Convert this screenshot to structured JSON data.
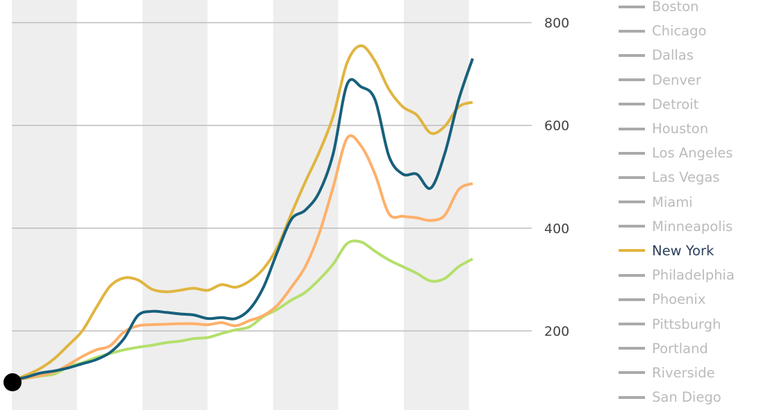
{
  "chart_data": {
    "type": "line",
    "title": "",
    "xlabel": "",
    "ylabel": "",
    "ylim": [
      46,
      844
    ],
    "yticks": [
      200,
      400,
      600,
      800
    ],
    "grid": true,
    "legend_placement": "right",
    "start_marker_value": 100,
    "series": [
      {
        "color": "#e0b540",
        "name": "New York",
        "values": [
          104,
          114,
          127,
          146,
          172,
          200,
          245,
          287,
          303,
          299,
          281,
          276,
          279,
          283,
          279,
          290,
          285,
          297,
          321,
          363,
          428,
          490,
          548,
          618,
          722,
          755,
          725,
          670,
          636,
          620,
          585,
          598,
          636,
          645
        ]
      },
      {
        "color": "#17607c",
        "values": [
          104,
          110,
          118,
          122,
          128,
          136,
          144,
          158,
          185,
          230,
          238,
          236,
          233,
          231,
          224,
          226,
          224,
          242,
          285,
          354,
          417,
          435,
          470,
          545,
          680,
          675,
          650,
          540,
          505,
          505,
          478,
          545,
          650,
          730
        ]
      },
      {
        "color": "#fdb06a",
        "values": [
          104,
          108,
          113,
          120,
          134,
          150,
          163,
          171,
          198,
          210,
          212,
          213,
          214,
          214,
          212,
          216,
          210,
          220,
          230,
          250,
          285,
          325,
          390,
          480,
          575,
          560,
          505,
          428,
          423,
          420,
          415,
          425,
          475,
          487
        ]
      },
      {
        "color": "#b4df6c",
        "values": [
          104,
          108,
          112,
          116,
          130,
          138,
          148,
          156,
          163,
          168,
          172,
          177,
          180,
          185,
          187,
          195,
          202,
          208,
          228,
          242,
          260,
          275,
          300,
          330,
          370,
          373,
          355,
          338,
          325,
          312,
          297,
          302,
          325,
          340
        ]
      }
    ]
  },
  "legend": {
    "items": [
      {
        "label": "Boston",
        "active": false
      },
      {
        "label": "Chicago",
        "active": false
      },
      {
        "label": "Dallas",
        "active": false
      },
      {
        "label": "Denver",
        "active": false
      },
      {
        "label": "Detroit",
        "active": false
      },
      {
        "label": "Houston",
        "active": false
      },
      {
        "label": "Los Angeles",
        "active": false
      },
      {
        "label": "Las Vegas",
        "active": false
      },
      {
        "label": "Miami",
        "active": false
      },
      {
        "label": "Minneapolis",
        "active": false
      },
      {
        "label": "New York",
        "active": true,
        "color": "#e0b540"
      },
      {
        "label": "Philadelphia",
        "active": false
      },
      {
        "label": "Phoenix",
        "active": false
      },
      {
        "label": "Pittsburgh",
        "active": false
      },
      {
        "label": "Portland",
        "active": false
      },
      {
        "label": "Riverside",
        "active": false
      },
      {
        "label": "San Diego",
        "active": false
      }
    ],
    "inactive_color": "#aaaaaa"
  }
}
